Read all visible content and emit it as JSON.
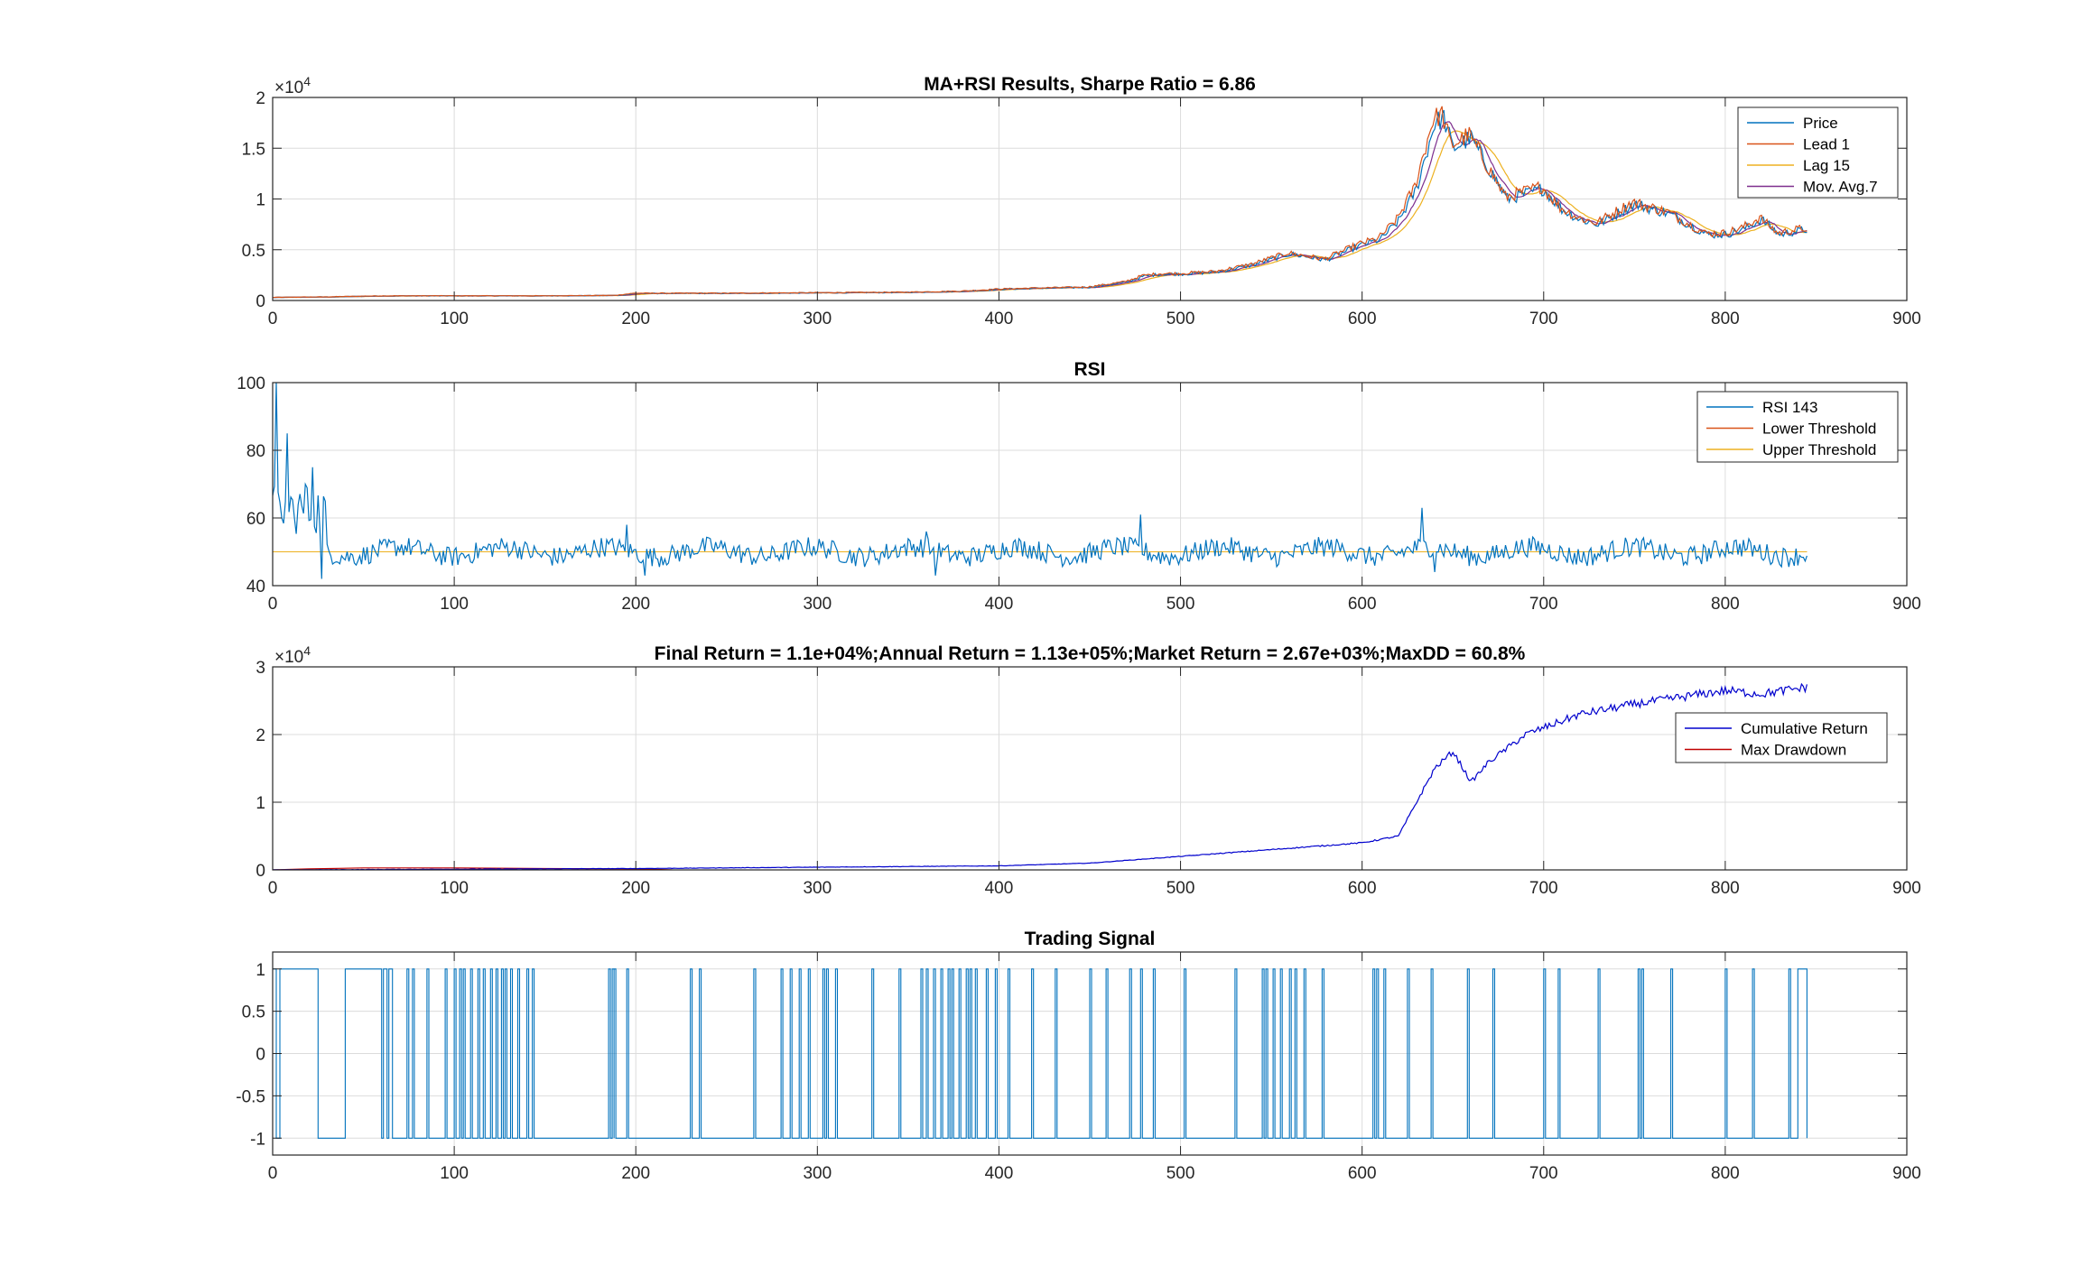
{
  "chart_data": [
    {
      "id": "price",
      "type": "line",
      "title": "MA+RSI Results, Sharpe Ratio = 6.86",
      "exponent_label": "×10",
      "exponent_power": "4",
      "xlim": [
        0,
        900
      ],
      "ylim": [
        0,
        20000
      ],
      "xticks": [
        0,
        100,
        200,
        300,
        400,
        500,
        600,
        700,
        800,
        900
      ],
      "yticks": [
        0,
        5000,
        10000,
        15000,
        20000
      ],
      "ytick_labels": [
        "0",
        "0.5",
        "1",
        "1.5",
        "2"
      ],
      "grid": true,
      "legend_position": "top-right",
      "colors": {
        "Price": "#0072BD",
        "Lead 1": "#D95319",
        "Lag 15": "#EDB120",
        "Mov. Avg.7": "#7E2F8E"
      },
      "series": [
        {
          "name": "Price",
          "color": "#0072BD",
          "kind": "price",
          "x": [
            0,
            30,
            60,
            100,
            150,
            190,
            200,
            250,
            300,
            350,
            380,
            400,
            420,
            450,
            470,
            480,
            490,
            500,
            520,
            540,
            560,
            580,
            600,
            610,
            620,
            630,
            640,
            645,
            650,
            660,
            670,
            680,
            690,
            700,
            710,
            720,
            730,
            750,
            770,
            790,
            800,
            810,
            820,
            830,
            845
          ],
          "y": [
            300,
            350,
            450,
            450,
            450,
            500,
            700,
            700,
            750,
            800,
            900,
            1100,
            1200,
            1300,
            1800,
            2400,
            2600,
            2600,
            2800,
            3500,
            4600,
            4000,
            5500,
            6000,
            7800,
            11000,
            17500,
            18000,
            15000,
            16000,
            13000,
            10000,
            10500,
            11000,
            9000,
            8000,
            7500,
            9500,
            8500,
            6500,
            6500,
            7000,
            8000,
            6500,
            7000
          ]
        },
        {
          "name": "Lead 1",
          "color": "#D95319",
          "kind": "lead"
        },
        {
          "name": "Lag 15",
          "color": "#EDB120",
          "kind": "lag"
        },
        {
          "name": "Mov. Avg.7",
          "color": "#7E2F8E",
          "kind": "ma"
        }
      ]
    },
    {
      "id": "rsi",
      "type": "line",
      "title": "RSI",
      "xlim": [
        0,
        900
      ],
      "ylim": [
        40,
        100
      ],
      "xticks": [
        0,
        100,
        200,
        300,
        400,
        500,
        600,
        700,
        800,
        900
      ],
      "yticks": [
        40,
        60,
        80,
        100
      ],
      "ytick_labels": [
        "40",
        "60",
        "80",
        "100"
      ],
      "grid": true,
      "legend_position": "top-right",
      "series": [
        {
          "name": "RSI 143",
          "color": "#0072BD",
          "kind": "rsi",
          "spikes": [
            [
              2,
              100
            ],
            [
              5,
              60
            ],
            [
              8,
              85
            ],
            [
              12,
              60
            ],
            [
              18,
              70
            ],
            [
              22,
              75
            ],
            [
              27,
              42
            ],
            [
              195,
              58
            ],
            [
              205,
              43
            ],
            [
              360,
              56
            ],
            [
              365,
              43
            ],
            [
              478,
              61
            ],
            [
              633,
              63
            ],
            [
              640,
              44
            ]
          ]
        },
        {
          "name": "Lower Threshold",
          "color": "#D95319",
          "level": 50
        },
        {
          "name": "Upper Threshold",
          "color": "#EDB120",
          "level": 50
        }
      ]
    },
    {
      "id": "returns",
      "type": "line",
      "title": "Final Return = 1.1e+04%;Annual Return = 1.13e+05%;Market Return = 2.67e+03%;MaxDD = 60.8%",
      "exponent_label": "×10",
      "exponent_power": "4",
      "xlim": [
        0,
        900
      ],
      "ylim": [
        0,
        30000
      ],
      "xticks": [
        0,
        100,
        200,
        300,
        400,
        500,
        600,
        700,
        800,
        900
      ],
      "yticks": [
        0,
        10000,
        20000,
        30000
      ],
      "ytick_labels": [
        "0",
        "1",
        "2",
        "3"
      ],
      "grid": true,
      "legend_position": "top-right",
      "series": [
        {
          "name": "Cumulative Return",
          "color": "#0000CD",
          "kind": "cum",
          "x": [
            0,
            100,
            200,
            300,
            400,
            450,
            500,
            550,
            600,
            620,
            630,
            640,
            650,
            660,
            670,
            680,
            690,
            700,
            720,
            750,
            800,
            820,
            845
          ],
          "y": [
            0,
            100,
            200,
            400,
            600,
            1000,
            2000,
            3000,
            4000,
            5000,
            10000,
            15000,
            17500,
            13000,
            16000,
            18000,
            20000,
            21000,
            23000,
            24500,
            26500,
            26000,
            27000
          ]
        },
        {
          "name": "Max Drawdown",
          "color": "#C00000",
          "kind": "dd",
          "x": [
            0,
            20,
            50,
            100,
            150,
            200,
            210,
            220
          ],
          "y": [
            0,
            150,
            300,
            300,
            200,
            150,
            100,
            0
          ]
        }
      ]
    },
    {
      "id": "signal",
      "type": "line",
      "title": "Trading Signal",
      "xlim": [
        0,
        900
      ],
      "ylim": [
        -1.2,
        1.2
      ],
      "xticks": [
        0,
        100,
        200,
        300,
        400,
        500,
        600,
        700,
        800,
        900
      ],
      "yticks": [
        -1,
        -0.5,
        0,
        0.5,
        1
      ],
      "ytick_labels": [
        "-1",
        "-0.5",
        "0",
        "0.5",
        "1"
      ],
      "grid": true,
      "series": [
        {
          "name": "Signal",
          "color": "#0072BD",
          "kind": "signal",
          "switch_points": [
            0,
            2,
            4,
            25,
            40,
            60,
            61,
            63,
            64,
            66,
            74,
            75,
            77,
            78,
            85,
            86,
            95,
            96,
            100,
            101,
            103,
            104,
            105,
            106,
            109,
            110,
            113,
            114,
            116,
            117,
            120,
            121,
            123,
            124,
            126,
            127,
            128,
            129,
            131,
            132,
            135,
            136,
            140,
            141,
            143,
            144,
            185,
            186,
            187,
            188,
            188,
            189,
            195,
            196,
            230,
            231,
            235,
            236,
            265,
            266,
            280,
            281,
            285,
            286,
            290,
            291,
            295,
            296,
            303,
            304,
            305,
            306,
            310,
            311,
            330,
            331,
            345,
            346,
            357,
            358,
            360,
            361,
            364,
            365,
            368,
            369,
            372,
            373,
            374,
            375,
            378,
            379,
            382,
            383,
            384,
            385,
            387,
            388,
            393,
            394,
            398,
            399,
            405,
            406,
            418,
            419,
            431,
            432,
            450,
            451,
            459,
            460,
            472,
            473,
            478,
            479,
            485,
            486,
            502,
            503,
            530,
            531,
            545,
            546,
            547,
            548,
            551,
            552,
            555,
            556,
            560,
            561,
            563,
            564,
            568,
            569,
            578,
            579,
            606,
            607,
            608,
            609,
            612,
            613,
            625,
            626,
            638,
            639,
            658,
            659,
            672,
            673,
            700,
            701,
            708,
            709,
            730,
            731,
            752,
            753,
            754,
            755,
            770,
            771,
            800,
            801,
            815,
            816,
            835,
            836,
            840,
            845
          ]
        }
      ]
    }
  ]
}
